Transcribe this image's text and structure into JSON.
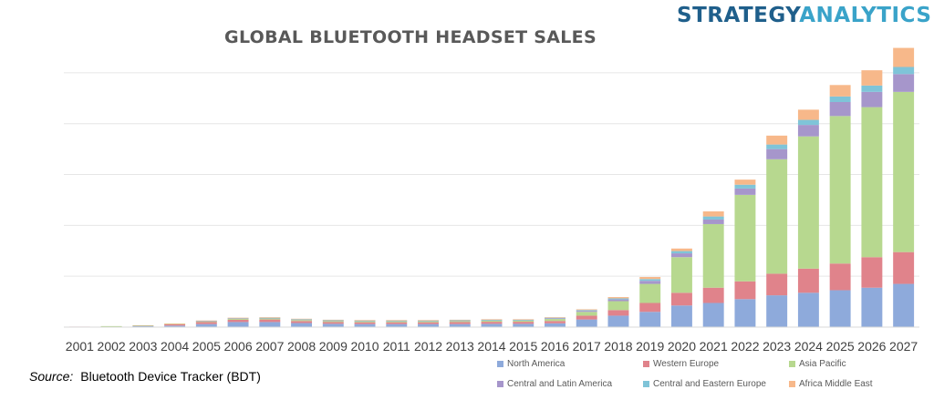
{
  "brand": {
    "part1": "STRATEGY",
    "part2": "ANALYTICS"
  },
  "source": {
    "label": "Source:",
    "text": "Bluetooth Device Tracker (BDT)"
  },
  "chart_data": {
    "type": "bar",
    "stacked": true,
    "title": "GLOBAL BLUETOOTH HEADSET SALES",
    "xlabel": "",
    "ylabel": "",
    "y_tick_labels_shown": false,
    "grid": true,
    "legend_position": "bottom-right",
    "ylim": [
      0,
      1100
    ],
    "categories": [
      "2001",
      "2002",
      "2003",
      "2004",
      "2005",
      "2006",
      "2007",
      "2008",
      "2009",
      "2010",
      "2011",
      "2012",
      "2013",
      "2014",
      "2015",
      "2016",
      "2017",
      "2018",
      "2019",
      "2020",
      "2021",
      "2022",
      "2023",
      "2024",
      "2025",
      "2026",
      "2027"
    ],
    "series": [
      {
        "name": "North America",
        "color": "#8eaadb",
        "values": [
          1,
          2,
          4,
          6,
          12,
          20,
          20,
          16,
          13,
          12,
          12,
          12,
          12,
          13,
          13,
          15,
          30,
          45,
          60,
          85,
          95,
          110,
          125,
          135,
          145,
          155,
          170
        ]
      },
      {
        "name": "Western Europe",
        "color": "#e0838b",
        "values": [
          1,
          1,
          2,
          5,
          8,
          9,
          10,
          8,
          7,
          7,
          7,
          7,
          8,
          8,
          8,
          9,
          15,
          22,
          35,
          50,
          60,
          70,
          85,
          95,
          105,
          120,
          125
        ]
      },
      {
        "name": "Asia Pacific",
        "color": "#b7d88f",
        "values": [
          0,
          1,
          1,
          2,
          3,
          4,
          4,
          4,
          4,
          4,
          4,
          4,
          4,
          5,
          5,
          8,
          15,
          35,
          75,
          140,
          250,
          340,
          450,
          520,
          580,
          590,
          630
        ]
      },
      {
        "name": "Central and Latin America",
        "color": "#a696cb",
        "values": [
          0,
          0,
          0,
          0,
          1,
          2,
          2,
          2,
          2,
          2,
          2,
          2,
          2,
          2,
          2,
          3,
          4,
          7,
          12,
          15,
          18,
          25,
          40,
          45,
          55,
          60,
          70
        ]
      },
      {
        "name": "Central and Eastern Europe",
        "color": "#7fc4d8",
        "values": [
          0,
          0,
          0,
          0,
          1,
          1,
          1,
          1,
          1,
          1,
          1,
          1,
          1,
          1,
          1,
          2,
          3,
          4,
          7,
          9,
          12,
          15,
          18,
          20,
          22,
          25,
          28
        ]
      },
      {
        "name": "Africa Middle East",
        "color": "#f7b88a",
        "values": [
          0,
          0,
          0,
          1,
          1,
          1,
          2,
          2,
          2,
          2,
          2,
          2,
          2,
          2,
          2,
          2,
          3,
          5,
          8,
          10,
          20,
          20,
          35,
          40,
          45,
          60,
          75
        ]
      }
    ]
  }
}
